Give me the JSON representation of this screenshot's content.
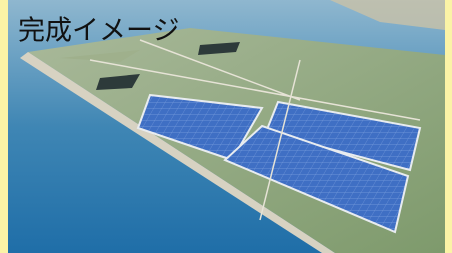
{
  "caption": "完成イメージ"
}
